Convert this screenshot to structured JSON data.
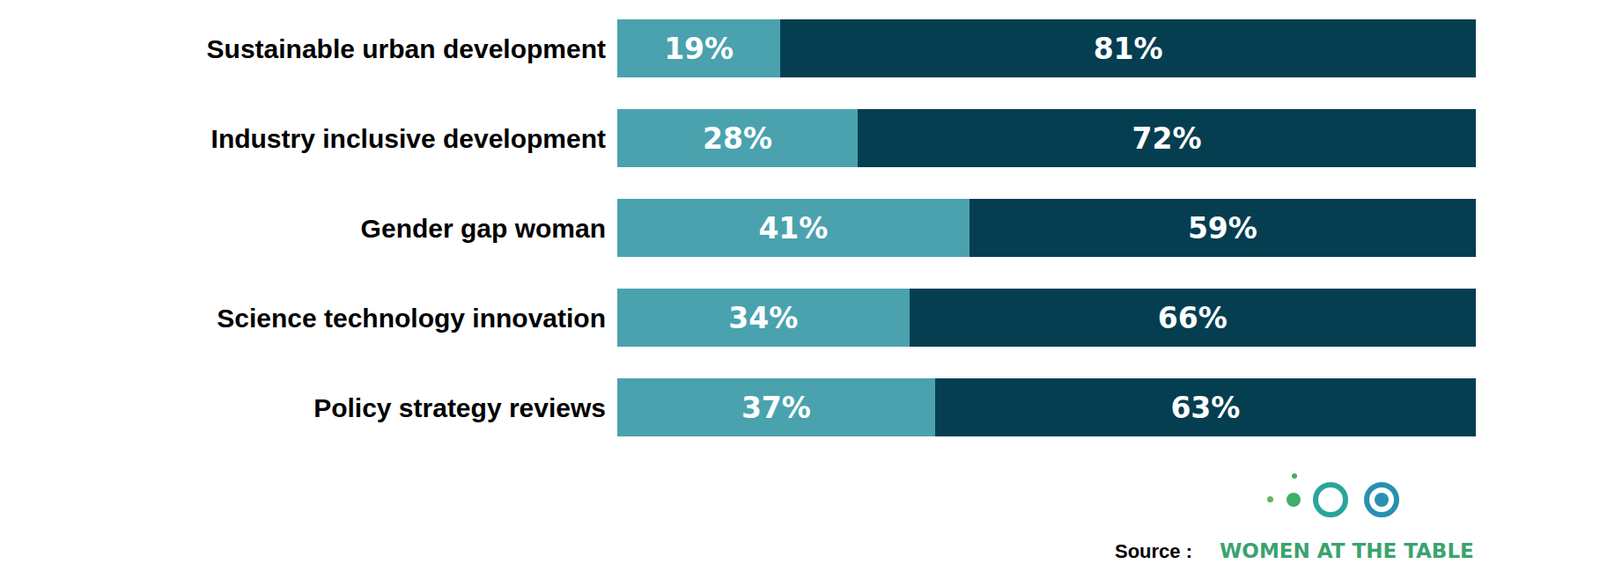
{
  "chart_data": {
    "type": "bar",
    "orientation": "horizontal",
    "stacked": true,
    "categories": [
      "Sustainable urban development",
      "Industry inclusive development",
      "Gender gap woman",
      "Science technology innovation",
      "Policy strategy reviews"
    ],
    "series": [
      {
        "color": "#4aa2ae",
        "values": [
          19,
          28,
          41,
          34,
          37
        ],
        "value_labels": [
          "19%",
          "28%",
          "41%",
          "34%",
          "37%"
        ]
      },
      {
        "color": "#053e51",
        "values": [
          81,
          72,
          59,
          66,
          63
        ],
        "value_labels": [
          "81%",
          "72%",
          "59%",
          "66%",
          "63%"
        ]
      }
    ],
    "xlim": [
      0,
      100
    ],
    "grid": false,
    "data_labels": true,
    "tick_labels": "y",
    "source_label": "Source :",
    "source": "WOMEN AT THE TABLE"
  }
}
